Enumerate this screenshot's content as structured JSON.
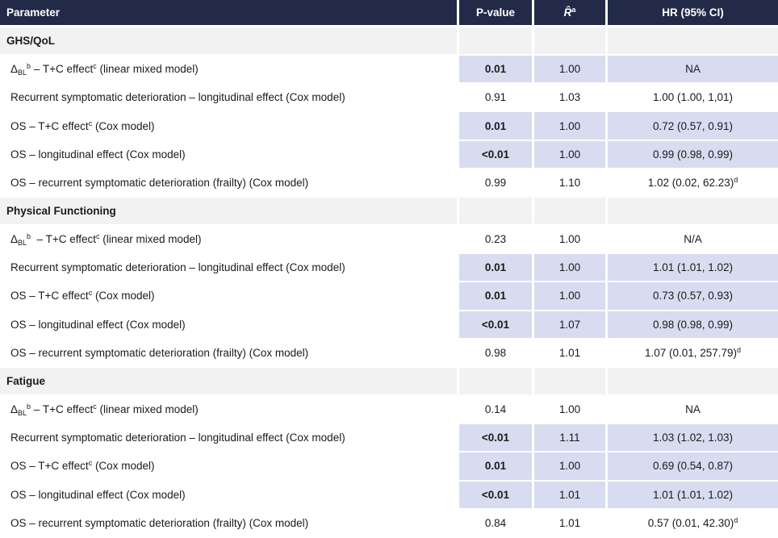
{
  "colors": {
    "header_bg": "#222a47",
    "header_text": "#ffffff",
    "highlight_bg": "#d8dcf0",
    "section_bg": "#f2f2f2",
    "row_bg": "#ffffff",
    "text": "#1a1a1a",
    "border": "#ffffff"
  },
  "table": {
    "header": {
      "parameter": "Parameter",
      "p_value": "P-value",
      "r_hat": "R̂",
      "r_hat_sup": "a",
      "hr": "HR (95% CI)"
    },
    "sections": [
      {
        "title": "GHS/QoL",
        "rows": [
          {
            "param": [
              {
                "t": "Δ"
              },
              {
                "t": "BL",
                "s": "sub"
              },
              {
                "t": "b",
                "s": "sup"
              },
              {
                "t": " – T+C effect"
              },
              {
                "t": "c",
                "s": "sup"
              },
              {
                "t": " (linear mixed model)"
              }
            ],
            "p": "0.01",
            "r": "1.00",
            "hr": [
              {
                "t": "NA"
              }
            ],
            "highlight": true
          },
          {
            "param": [
              {
                "t": "Recurrent symptomatic deterioration – longitudinal effect (Cox model)"
              }
            ],
            "p": "0.91",
            "r": "1.03",
            "hr": [
              {
                "t": "1.00 (1.00, 1,01)"
              }
            ],
            "highlight": false
          },
          {
            "param": [
              {
                "t": "OS – T+C effect"
              },
              {
                "t": "c",
                "s": "sup"
              },
              {
                "t": " (Cox model)"
              }
            ],
            "p": "0.01",
            "r": "1.00",
            "hr": [
              {
                "t": "0.72 (0.57, 0.91)"
              }
            ],
            "highlight": true
          },
          {
            "param": [
              {
                "t": "OS – longitudinal effect (Cox model)"
              }
            ],
            "p": "<0.01",
            "r": "1.00",
            "hr": [
              {
                "t": "0.99 (0.98, 0.99)"
              }
            ],
            "highlight": true
          },
          {
            "param": [
              {
                "t": "OS – recurrent symptomatic deterioration (frailty) (Cox model)"
              }
            ],
            "p": "0.99",
            "r": "1.10",
            "hr": [
              {
                "t": "1.02 (0.02, 62.23)"
              },
              {
                "t": "d",
                "s": "sup"
              }
            ],
            "highlight": false
          }
        ]
      },
      {
        "title": "Physical Functioning",
        "rows": [
          {
            "param": [
              {
                "t": "Δ"
              },
              {
                "t": "BL",
                "s": "sub"
              },
              {
                "t": "b",
                "s": "sup"
              },
              {
                "t": "  – T+C effect"
              },
              {
                "t": "c",
                "s": "sup"
              },
              {
                "t": " (linear mixed model)"
              }
            ],
            "p": "0.23",
            "r": "1.00",
            "hr": [
              {
                "t": "N/A"
              }
            ],
            "highlight": false
          },
          {
            "param": [
              {
                "t": "Recurrent symptomatic deterioration – longitudinal effect (Cox model)"
              }
            ],
            "p": "0.01",
            "r": "1.00",
            "hr": [
              {
                "t": "1.01 (1.01, 1.02)"
              }
            ],
            "highlight": true
          },
          {
            "param": [
              {
                "t": "OS – T+C effect"
              },
              {
                "t": "c",
                "s": "sup"
              },
              {
                "t": " (Cox model)"
              }
            ],
            "p": "0.01",
            "r": "1.00",
            "hr": [
              {
                "t": "0.73 (0.57, 0.93)"
              }
            ],
            "highlight": true
          },
          {
            "param": [
              {
                "t": "OS – longitudinal effect (Cox model)"
              }
            ],
            "p": "<0.01",
            "r": "1.07",
            "hr": [
              {
                "t": "0.98 (0.98, 0.99)"
              }
            ],
            "highlight": true
          },
          {
            "param": [
              {
                "t": "OS – recurrent symptomatic deterioration (frailty) (Cox model)"
              }
            ],
            "p": "0.98",
            "r": "1.01",
            "hr": [
              {
                "t": "1.07 (0.01, 257.79)"
              },
              {
                "t": "d",
                "s": "sup"
              }
            ],
            "highlight": false
          }
        ]
      },
      {
        "title": "Fatigue",
        "rows": [
          {
            "param": [
              {
                "t": "Δ"
              },
              {
                "t": "BL",
                "s": "sub"
              },
              {
                "t": "b",
                "s": "sup"
              },
              {
                "t": " – T+C effect"
              },
              {
                "t": "c",
                "s": "sup"
              },
              {
                "t": " (linear mixed model)"
              }
            ],
            "p": "0.14",
            "r": "1.00",
            "hr": [
              {
                "t": "NA"
              }
            ],
            "highlight": false
          },
          {
            "param": [
              {
                "t": "Recurrent symptomatic deterioration – longitudinal effect (Cox model)"
              }
            ],
            "p": "<0.01",
            "r": "1.11",
            "hr": [
              {
                "t": "1.03 (1.02, 1.03)"
              }
            ],
            "highlight": true
          },
          {
            "param": [
              {
                "t": "OS – T+C effect"
              },
              {
                "t": "c",
                "s": "sup"
              },
              {
                "t": " (Cox model)"
              }
            ],
            "p": "0.01",
            "r": "1.00",
            "hr": [
              {
                "t": "0.69 (0.54, 0.87)"
              }
            ],
            "highlight": true
          },
          {
            "param": [
              {
                "t": "OS – longitudinal effect (Cox model)"
              }
            ],
            "p": "<0.01",
            "r": "1.01",
            "hr": [
              {
                "t": "1.01 (1.01, 1.02)"
              }
            ],
            "highlight": true
          },
          {
            "param": [
              {
                "t": "OS – recurrent symptomatic deterioration (frailty) (Cox model)"
              }
            ],
            "p": "0.84",
            "r": "1.01",
            "hr": [
              {
                "t": "0.57 (0.01, 42.30)"
              },
              {
                "t": "d",
                "s": "sup"
              }
            ],
            "highlight": false
          }
        ]
      }
    ]
  }
}
